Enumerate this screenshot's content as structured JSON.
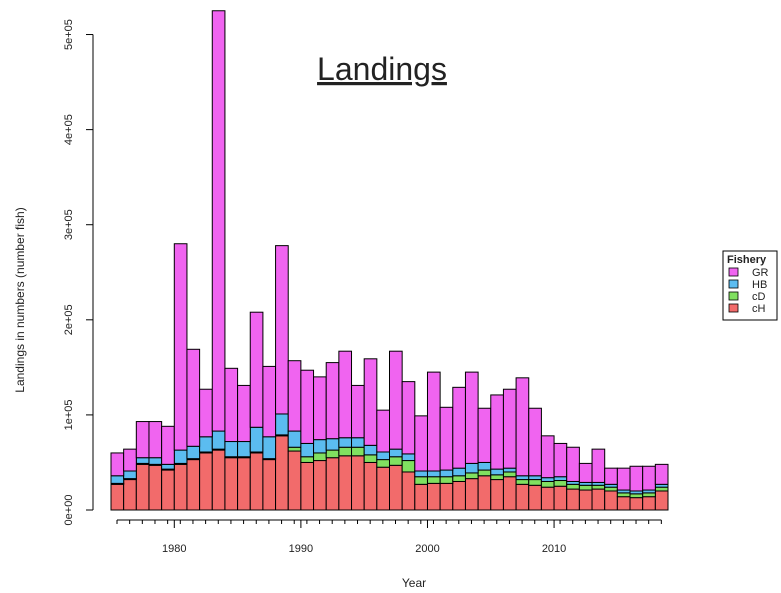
{
  "chart_data": {
    "type": "bar",
    "stacked": true,
    "title": "Landings",
    "x_label": "Year",
    "y_label": "Landings in numbers (number fish)",
    "legend_title": "Fishery",
    "legend_position": "right",
    "x": [
      1975,
      1976,
      1977,
      1978,
      1979,
      1980,
      1981,
      1982,
      1983,
      1984,
      1985,
      1986,
      1987,
      1988,
      1989,
      1990,
      1991,
      1992,
      1993,
      1994,
      1995,
      1996,
      1997,
      1998,
      1999,
      2000,
      2001,
      2002,
      2003,
      2004,
      2005,
      2006,
      2007,
      2008,
      2009,
      2010,
      2011,
      2012,
      2013,
      2014,
      2015,
      2016,
      2017,
      2018
    ],
    "xlim": [
      1975,
      2019
    ],
    "xticks": [
      1980,
      1990,
      2000,
      2010
    ],
    "ylim": [
      0,
      530000
    ],
    "yticks": [
      {
        "value": 0,
        "label": "0e+00"
      },
      {
        "value": 100000,
        "label": "1e+05"
      },
      {
        "value": 200000,
        "label": "2e+05"
      },
      {
        "value": 300000,
        "label": "3e+05"
      },
      {
        "value": 400000,
        "label": "4e+05"
      },
      {
        "value": 500000,
        "label": "5e+05"
      }
    ],
    "series": [
      {
        "name": "cH",
        "color": "#f26b6b",
        "values": [
          27000,
          32000,
          48000,
          47000,
          42000,
          48000,
          53000,
          60000,
          63000,
          55000,
          55000,
          60000,
          53000,
          78000,
          62000,
          50000,
          52000,
          55000,
          57000,
          57000,
          50000,
          45000,
          47000,
          40000,
          27000,
          28000,
          28000,
          30000,
          33000,
          36000,
          32000,
          35000,
          27000,
          26000,
          24000,
          25000,
          22000,
          21000,
          22000,
          20000,
          14000,
          13000,
          14000,
          20000
        ]
      },
      {
        "name": "cD",
        "color": "#80e060",
        "values": [
          1000,
          1000,
          1000,
          1000,
          1000,
          1000,
          1000,
          1000,
          1000,
          1000,
          1000,
          1000,
          1000,
          1000,
          4000,
          6000,
          8000,
          8000,
          9000,
          9000,
          8000,
          8000,
          9000,
          12000,
          8000,
          7000,
          7000,
          6000,
          6000,
          6000,
          5000,
          5000,
          5000,
          6000,
          6000,
          6000,
          5000,
          5000,
          4000,
          4000,
          4000,
          4000,
          4000,
          4000
        ]
      },
      {
        "name": "HB",
        "color": "#5bbcf0",
        "values": [
          8000,
          8000,
          6000,
          7000,
          5000,
          14000,
          13000,
          16000,
          19000,
          16000,
          16000,
          26000,
          23000,
          22000,
          17000,
          14000,
          14000,
          12000,
          10000,
          10000,
          10000,
          8000,
          8000,
          7000,
          6000,
          6000,
          7000,
          8000,
          10000,
          8000,
          6000,
          4000,
          4000,
          4000,
          4000,
          4000,
          3000,
          3000,
          3000,
          3000,
          3000,
          3000,
          3000,
          3000
        ]
      },
      {
        "name": "GR",
        "color": "#f064f0",
        "values": [
          24000,
          23000,
          38000,
          38000,
          40000,
          217000,
          102000,
          50000,
          442000,
          77000,
          59000,
          121000,
          74000,
          177000,
          74000,
          77000,
          66000,
          80000,
          91000,
          55000,
          91000,
          44000,
          103000,
          76000,
          58000,
          104000,
          66000,
          85000,
          96000,
          57000,
          78000,
          83000,
          103000,
          71000,
          44000,
          35000,
          36000,
          20000,
          35000,
          17000,
          23000,
          26000,
          25000,
          21000
        ]
      }
    ]
  }
}
